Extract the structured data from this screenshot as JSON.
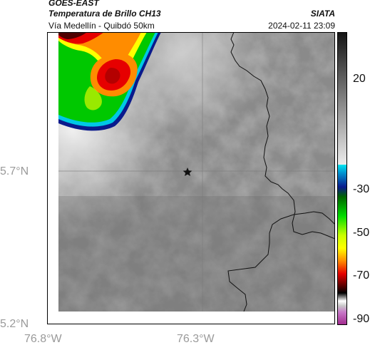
{
  "header": {
    "satellite": "GOES-EAST",
    "product": "Temperatura de Brillo CH13",
    "route": "Vía Medellín - Quibdó 50km",
    "agency": "SIATA",
    "datetime": "2024-02-11 23:09"
  },
  "axes": {
    "lat_ticks": [
      "5.7°N",
      "5.2°N"
    ],
    "lon_ticks": [
      "76.8°W",
      "76.3°W"
    ]
  },
  "colorbar": {
    "ticks": [
      "20",
      "-30",
      "-50",
      "-70",
      "-90"
    ],
    "colors": {
      "warm_gray_top": "#141414",
      "warm_gray_bottom": "#e6e6e6",
      "cyan": "#00c8e6",
      "blue": "#0a1a8c",
      "green": "#00c800",
      "yellow": "#ffff00",
      "orange": "#ff8c00",
      "red": "#e60000",
      "dark_red": "#500000",
      "black": "#000000",
      "magenta": "#b43cb4"
    }
  },
  "map": {
    "marker": "star-icon",
    "base_gray": "#8c8c8c"
  }
}
